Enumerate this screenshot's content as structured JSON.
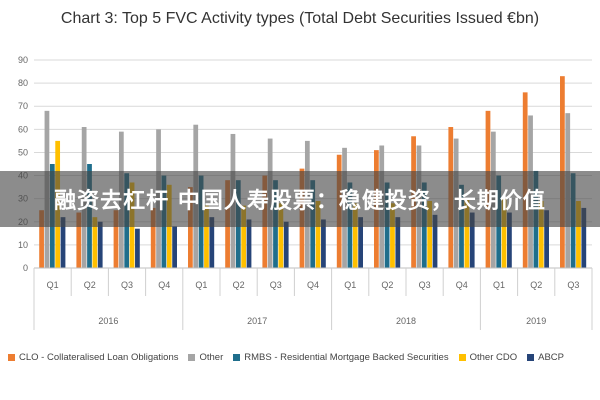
{
  "chart_data": {
    "type": "bar",
    "title": "Chart 3: Top 5 FVC Activity types (Total Debt Securities Issued €bn)",
    "categories": [
      "Q1",
      "Q2",
      "Q3",
      "Q4",
      "Q1",
      "Q2",
      "Q3",
      "Q4",
      "Q1",
      "Q2",
      "Q3",
      "Q4",
      "Q1",
      "Q2",
      "Q3"
    ],
    "years": [
      {
        "label": "2016",
        "start": 0,
        "count": 4
      },
      {
        "label": "2017",
        "start": 4,
        "count": 4
      },
      {
        "label": "2018",
        "start": 8,
        "count": 4
      },
      {
        "label": "2019",
        "start": 12,
        "count": 3
      }
    ],
    "ylim": [
      0,
      90
    ],
    "yticks": [
      0,
      10,
      20,
      30,
      40,
      50,
      60,
      70,
      80,
      90
    ],
    "grid": true,
    "legend_position": "bottom",
    "series": [
      {
        "name": "CLO - Collateralised Loan Obligations",
        "color": "#ed7d31",
        "values": [
          25,
          24,
          25,
          26,
          35,
          38,
          40,
          43,
          49,
          51,
          57,
          61,
          68,
          76,
          83
        ]
      },
      {
        "name": "Other",
        "color": "#a5a5a5",
        "values": [
          68,
          61,
          59,
          60,
          62,
          58,
          56,
          55,
          52,
          53,
          53,
          56,
          59,
          66,
          67
        ]
      },
      {
        "name": "RMBS - Residential Mortgage Backed Securities",
        "color": "#1f6e8c",
        "values": [
          45,
          45,
          41,
          40,
          40,
          38,
          38,
          38,
          37,
          37,
          37,
          36,
          40,
          42,
          41
        ]
      },
      {
        "name": "Other CDO",
        "color": "#ffc000",
        "values": [
          55,
          22,
          37,
          36,
          27,
          27,
          28,
          29,
          28,
          28,
          29,
          30,
          30,
          29,
          29
        ]
      },
      {
        "name": "ABCP",
        "color": "#264478",
        "values": [
          22,
          20,
          17,
          18,
          22,
          21,
          20,
          21,
          22,
          22,
          23,
          24,
          24,
          25,
          26
        ]
      }
    ]
  },
  "overlay": {
    "text": "融资去杠杆 中国人寿股票：稳健投资，长期价值"
  }
}
